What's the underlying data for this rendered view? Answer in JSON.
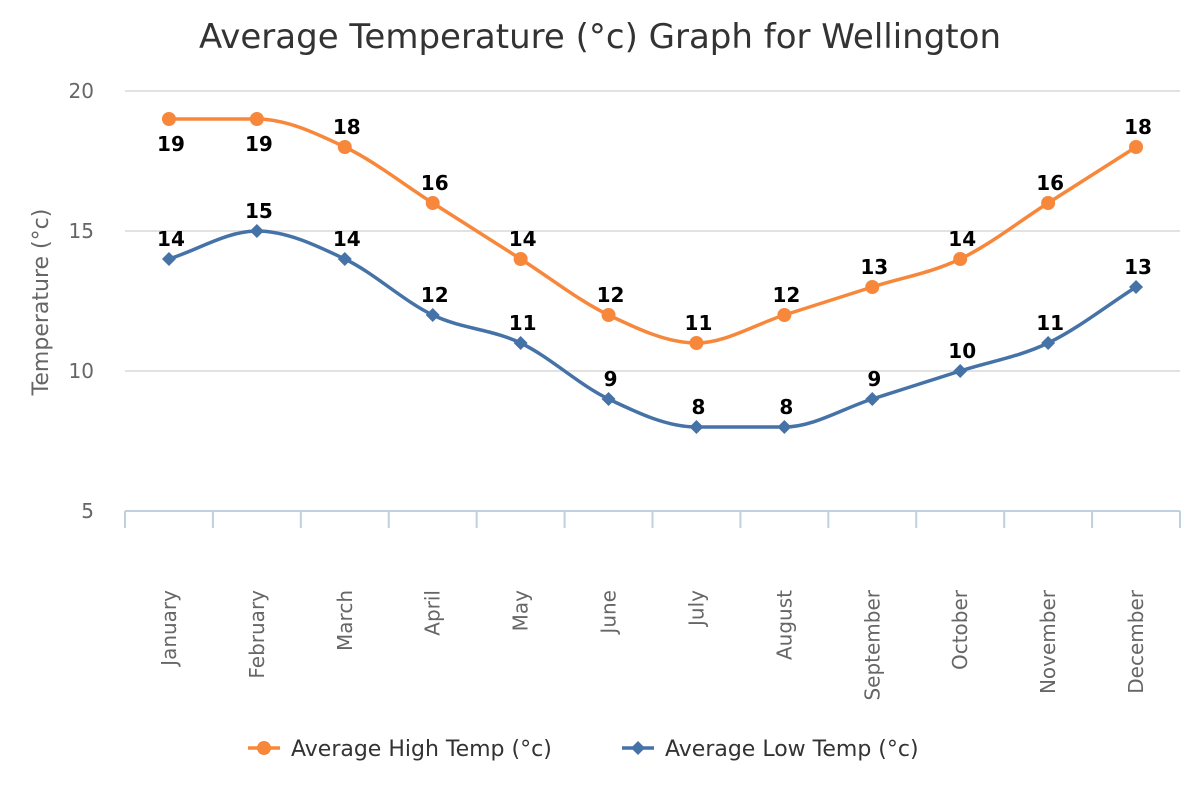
{
  "chart_data": {
    "type": "line",
    "title": "Average Temperature (°c) Graph for Wellington",
    "ylabel": "Temperature (°c)",
    "xlabel": "",
    "ylim": [
      5,
      20
    ],
    "yticks": [
      5,
      10,
      15,
      20
    ],
    "grid": true,
    "legend_position": "bottom",
    "smooth": true,
    "categories": [
      "January",
      "February",
      "March",
      "April",
      "May",
      "June",
      "July",
      "August",
      "September",
      "October",
      "November",
      "December"
    ],
    "series": [
      {
        "name": "Average High Temp (°c)",
        "color": "#f7873a",
        "marker": "circle",
        "values": [
          19,
          19,
          18,
          16,
          14,
          12,
          11,
          12,
          13,
          14,
          16,
          18
        ]
      },
      {
        "name": "Average Low Temp (°c)",
        "color": "#4572a7",
        "marker": "diamond",
        "values": [
          14,
          15,
          14,
          12,
          11,
          9,
          8,
          8,
          9,
          10,
          11,
          13
        ]
      }
    ]
  }
}
